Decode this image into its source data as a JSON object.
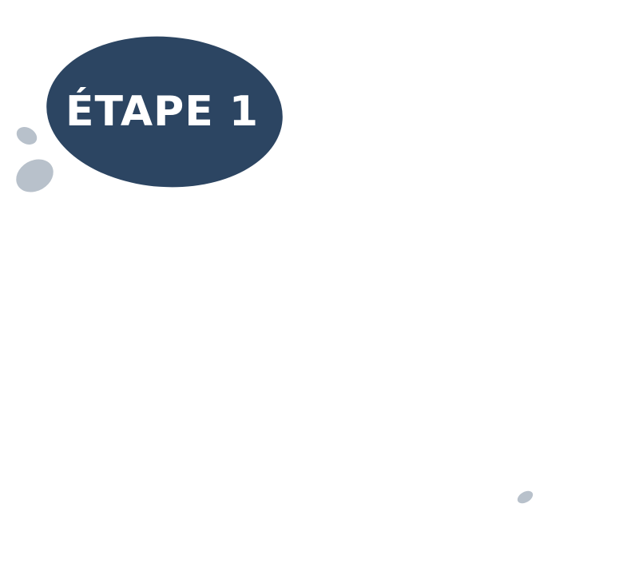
{
  "step_bubble": {
    "label": "ÉTAPE 1"
  },
  "colors": {
    "bubble": "#2c4562",
    "dots": "#b8c1cb",
    "label": "#ffffff",
    "background": "#ffffff"
  },
  "decorations": [
    "thought-dot-small",
    "thought-dot-large",
    "thought-dot-far"
  ]
}
